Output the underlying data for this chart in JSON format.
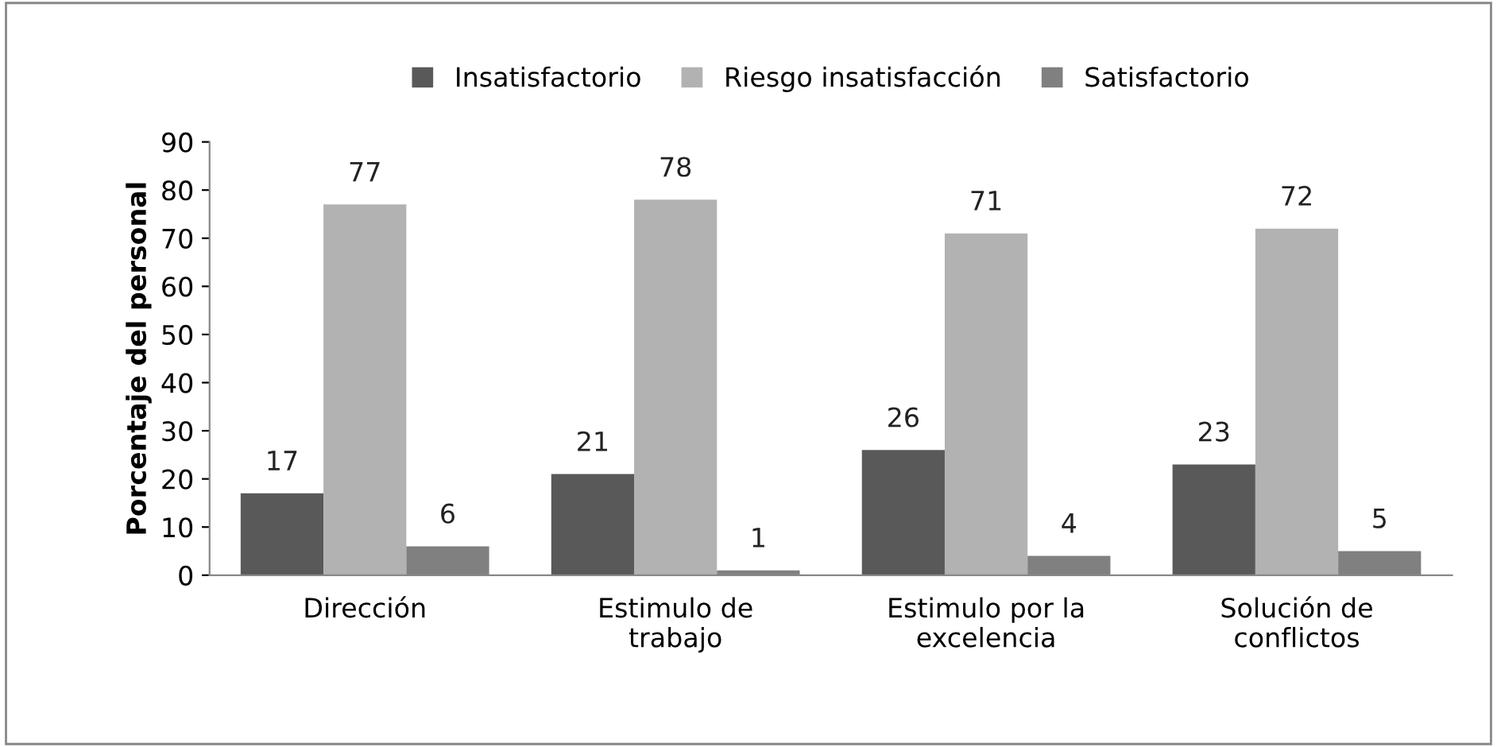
{
  "chart_data": {
    "type": "bar",
    "ylabel": "Porcentaje del personal",
    "categories": [
      "Dirección",
      "Estimulo de\ntrabajo",
      "Estimulo por la\nexcelencia",
      "Solución de\nconflictos"
    ],
    "series": [
      {
        "name": "Insatisfactorio",
        "color": "#595959",
        "values": [
          17,
          21,
          26,
          23
        ]
      },
      {
        "name": "Riesgo insatisfacción",
        "color": "#b2b2b2",
        "values": [
          77,
          78,
          71,
          72
        ]
      },
      {
        "name": "Satisfactorio",
        "color": "#808080",
        "values": [
          6,
          1,
          4,
          5
        ]
      }
    ],
    "ylim": [
      0,
      90
    ],
    "yticks": [
      0,
      10,
      20,
      30,
      40,
      50,
      60,
      70,
      80,
      90
    ],
    "data_labels": true,
    "grid": false,
    "legend": "top"
  }
}
